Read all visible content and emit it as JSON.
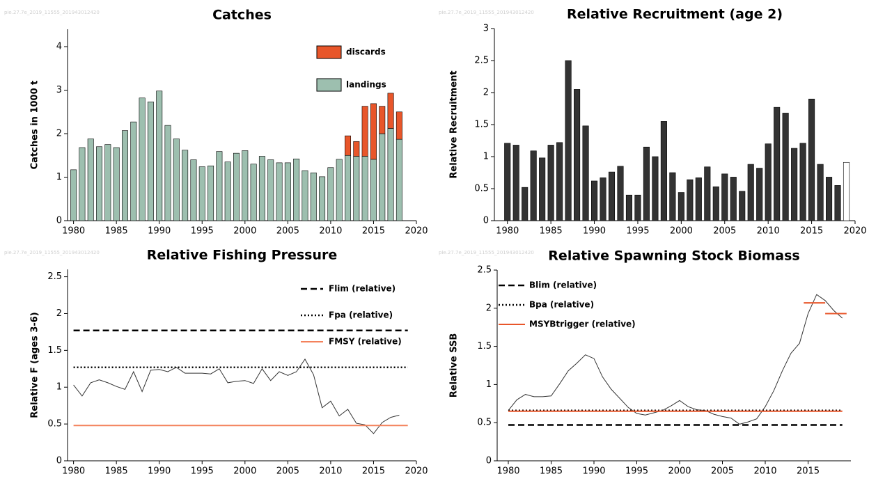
{
  "chart_data": [
    {
      "type": "bar",
      "stacked": true,
      "title": "Catches",
      "watermark": "pie.27.7e_2019_11555_201943012420",
      "ylabel": "Catches in 1000 t",
      "x": [
        1980,
        1981,
        1982,
        1983,
        1984,
        1985,
        1986,
        1987,
        1988,
        1989,
        1990,
        1991,
        1992,
        1993,
        1994,
        1995,
        1996,
        1997,
        1998,
        1999,
        2000,
        2001,
        2002,
        2003,
        2004,
        2005,
        2006,
        2007,
        2008,
        2009,
        2010,
        2011,
        2012,
        2013,
        2014,
        2015,
        2016,
        2017,
        2018
      ],
      "series": [
        {
          "name": "landings",
          "color": "#9dbfaf",
          "values": [
            1.17,
            1.68,
            1.88,
            1.7,
            1.75,
            1.68,
            2.07,
            2.27,
            2.82,
            2.73,
            2.98,
            2.19,
            1.88,
            1.62,
            1.4,
            1.24,
            1.26,
            1.59,
            1.35,
            1.55,
            1.61,
            1.3,
            1.48,
            1.4,
            1.33,
            1.33,
            1.42,
            1.15,
            1.1,
            1.01,
            1.22,
            1.41,
            1.5,
            1.48,
            1.48,
            1.41,
            2.0,
            2.12,
            1.87
          ]
        },
        {
          "name": "discards",
          "color": "#e8562a",
          "values": [
            0,
            0,
            0,
            0,
            0,
            0,
            0,
            0,
            0,
            0,
            0,
            0,
            0,
            0,
            0,
            0,
            0,
            0,
            0,
            0,
            0,
            0,
            0,
            0,
            0,
            0,
            0,
            0,
            0,
            0,
            0,
            0,
            0.45,
            0.34,
            1.15,
            1.28,
            0.63,
            0.81,
            0.63
          ]
        }
      ],
      "xlim": [
        1979.3,
        2020
      ],
      "xticks": [
        1980,
        1985,
        1990,
        1995,
        2000,
        2005,
        2010,
        2015,
        2020
      ],
      "ylim": [
        0,
        4.4
      ],
      "yticks": [
        0,
        1,
        2,
        3,
        4
      ],
      "legend": "upper right"
    },
    {
      "type": "bar",
      "title": "Relative Recruitment (age 2)",
      "watermark": "pie.27.7e_2019_11555_201943012420",
      "ylabel": "Relative Recruitment",
      "x": [
        1980,
        1981,
        1982,
        1983,
        1984,
        1985,
        1986,
        1987,
        1988,
        1989,
        1990,
        1991,
        1992,
        1993,
        1994,
        1995,
        1996,
        1997,
        1998,
        1999,
        2000,
        2001,
        2002,
        2003,
        2004,
        2005,
        2006,
        2007,
        2008,
        2009,
        2010,
        2011,
        2012,
        2013,
        2014,
        2015,
        2016,
        2017,
        2018,
        2019
      ],
      "series": [
        {
          "colors": [
            "#333333",
            "#333333",
            "#333333",
            "#333333",
            "#333333",
            "#333333",
            "#333333",
            "#333333",
            "#333333",
            "#333333",
            "#333333",
            "#333333",
            "#333333",
            "#333333",
            "#333333",
            "#333333",
            "#333333",
            "#333333",
            "#333333",
            "#333333",
            "#333333",
            "#333333",
            "#333333",
            "#333333",
            "#333333",
            "#333333",
            "#333333",
            "#333333",
            "#333333",
            "#333333",
            "#333333",
            "#333333",
            "#333333",
            "#333333",
            "#333333",
            "#333333",
            "#333333",
            "#333333",
            "#333333",
            "#ffffff"
          ],
          "values": [
            1.21,
            1.18,
            0.52,
            1.09,
            0.98,
            1.18,
            1.22,
            2.5,
            2.05,
            1.48,
            0.62,
            0.67,
            0.76,
            0.85,
            0.4,
            0.4,
            1.15,
            1.0,
            1.55,
            0.75,
            0.44,
            0.64,
            0.67,
            0.84,
            0.53,
            0.73,
            0.68,
            0.46,
            0.88,
            0.82,
            1.2,
            1.77,
            1.68,
            1.13,
            1.21,
            1.9,
            0.88,
            0.68,
            0.55,
            0.91
          ]
        }
      ],
      "xlim": [
        1978.5,
        2020
      ],
      "xticks": [
        1980,
        1985,
        1990,
        1995,
        2000,
        2005,
        2010,
        2015,
        2020
      ],
      "ylim": [
        0,
        3
      ],
      "yticks": [
        0,
        0.5,
        1,
        1.5,
        2,
        2.5,
        3
      ]
    },
    {
      "type": "line",
      "title": "Relative Fishing Pressure",
      "watermark": "pie.27.7e_2019_11555_201943012420",
      "ylabel": "Relative F (ages 3-6)",
      "x": [
        1980,
        1981,
        1982,
        1983,
        1984,
        1985,
        1986,
        1987,
        1988,
        1989,
        1990,
        1991,
        1992,
        1993,
        1994,
        1995,
        1996,
        1997,
        1998,
        1999,
        2000,
        2001,
        2002,
        2003,
        2004,
        2005,
        2006,
        2007,
        2008,
        2009,
        2010,
        2011,
        2012,
        2013,
        2014,
        2015,
        2016,
        2017,
        2018
      ],
      "series": [
        {
          "color": "#333333",
          "width": 1,
          "style": "solid",
          "values": [
            1.03,
            0.88,
            1.06,
            1.1,
            1.06,
            1.01,
            0.97,
            1.21,
            0.94,
            1.23,
            1.24,
            1.21,
            1.27,
            1.19,
            1.19,
            1.19,
            1.18,
            1.25,
            1.06,
            1.08,
            1.09,
            1.05,
            1.25,
            1.09,
            1.21,
            1.16,
            1.21,
            1.38,
            1.17,
            0.72,
            0.81,
            0.61,
            0.7,
            0.51,
            0.49,
            0.37,
            0.52,
            0.59,
            0.62
          ]
        },
        {
          "name": "Flim (relative)",
          "color": "#000000",
          "width": 2.5,
          "style": "dashed",
          "x": [
            1980,
            2019
          ],
          "values": [
            1.77,
            1.77
          ]
        },
        {
          "name": "Fpa (relative)",
          "color": "#000000",
          "width": 2.5,
          "style": "dotted",
          "x": [
            1980,
            2019
          ],
          "values": [
            1.27,
            1.27
          ]
        },
        {
          "name": "FMSY (relative)",
          "color": "#f4825c",
          "width": 2,
          "style": "solid",
          "x": [
            1980,
            2019
          ],
          "values": [
            0.48,
            0.48
          ]
        }
      ],
      "xlim": [
        1979.3,
        2020
      ],
      "xticks": [
        1980,
        1985,
        1990,
        1995,
        2000,
        2005,
        2010,
        2015,
        2020
      ],
      "ylim": [
        0,
        2.6
      ],
      "yticks": [
        0,
        0.5,
        1,
        1.5,
        2,
        2.5
      ],
      "legend": "upper right"
    },
    {
      "type": "line",
      "title": "Relative Spawning Stock Biomass",
      "watermark": "pie.27.7e_2019_11555_201943012420",
      "ylabel": "Relative SSB",
      "x": [
        1980,
        1981,
        1982,
        1983,
        1984,
        1985,
        1986,
        1987,
        1988,
        1989,
        1990,
        1991,
        1992,
        1993,
        1994,
        1995,
        1996,
        1997,
        1998,
        1999,
        2000,
        2001,
        2002,
        2003,
        2004,
        2005,
        2006,
        2007,
        2008,
        2009,
        2010,
        2011,
        2012,
        2013,
        2014,
        2015,
        2016,
        2017,
        2018,
        2019
      ],
      "series": [
        {
          "color": "#333333",
          "width": 1,
          "style": "solid",
          "values": [
            0.66,
            0.8,
            0.87,
            0.84,
            0.84,
            0.85,
            1.01,
            1.18,
            1.28,
            1.39,
            1.34,
            1.1,
            0.94,
            0.82,
            0.7,
            0.62,
            0.6,
            0.63,
            0.66,
            0.72,
            0.79,
            0.71,
            0.67,
            0.66,
            0.61,
            0.58,
            0.56,
            0.48,
            0.51,
            0.55,
            0.71,
            0.92,
            1.18,
            1.41,
            1.54,
            1.93,
            2.18,
            2.1,
            1.97,
            1.87
          ]
        },
        {
          "name": "Blim (relative)",
          "color": "#000000",
          "width": 2.5,
          "style": "dashed",
          "x": [
            1980,
            2019
          ],
          "values": [
            0.47,
            0.47
          ]
        },
        {
          "name": "Bpa (relative)",
          "color": "#000000",
          "width": 2.5,
          "style": "dotted",
          "x": [
            1980,
            2019
          ],
          "values": [
            0.66,
            0.66
          ]
        },
        {
          "name": "MSYBtrigger (relative)",
          "color": "#e8562a",
          "width": 2,
          "style": "solid",
          "x": [
            1980,
            2019,
            null,
            2014.5,
            2017,
            null,
            2017,
            2019.5
          ],
          "values": [
            0.65,
            0.65,
            null,
            2.07,
            2.07,
            null,
            1.93,
            1.93
          ]
        }
      ],
      "xlim": [
        1978.7,
        2020
      ],
      "xticks": [
        1980,
        1985,
        1990,
        1995,
        2000,
        2005,
        2010,
        2015
      ],
      "ylim": [
        0,
        2.5
      ],
      "yticks": [
        0,
        0.5,
        1,
        1.5,
        2,
        2.5
      ],
      "legend": "upper left"
    }
  ]
}
